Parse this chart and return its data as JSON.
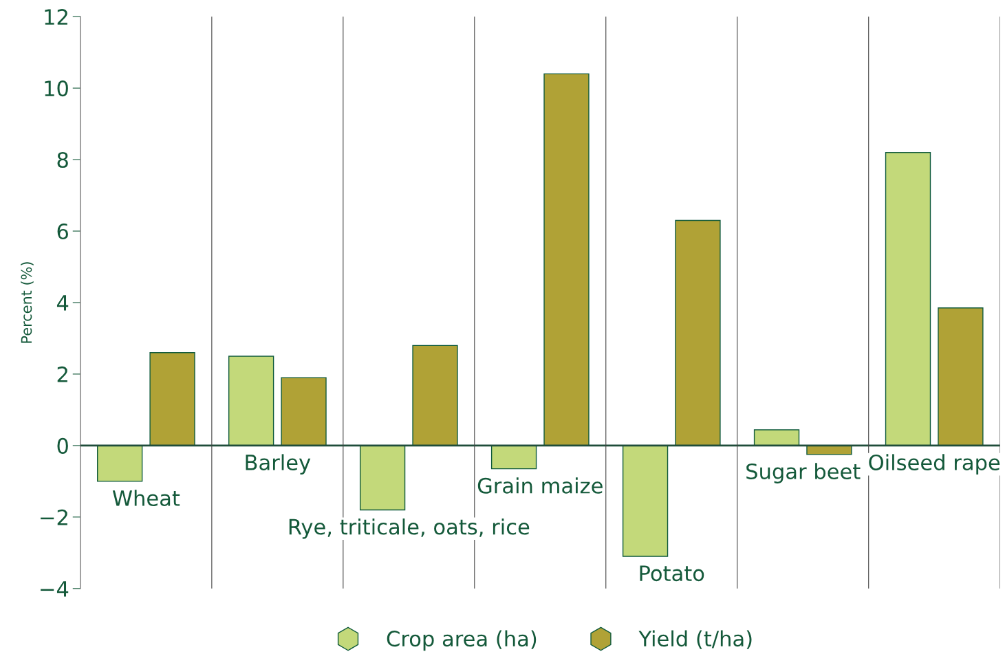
{
  "chart_data": {
    "type": "bar",
    "ylabel": "Percent (%)",
    "categories": [
      "Wheat",
      "Barley",
      "Rye, triticale, oats, rice",
      "Grain maize",
      "Potato",
      "Sugar beet",
      "Oilseed rape"
    ],
    "series": [
      {
        "name": "Crop area (ha)",
        "color": "#c3d97a",
        "values": [
          -1.0,
          2.5,
          -1.8,
          -0.65,
          -3.1,
          0.44,
          8.2
        ]
      },
      {
        "name": "Yield (t/ha)",
        "color": "#b0a236",
        "values": [
          2.6,
          1.9,
          2.8,
          10.4,
          6.3,
          -0.25,
          3.85
        ]
      }
    ],
    "ylim": [
      -4,
      12
    ],
    "yticks": [
      {
        "value": -4,
        "label": "−4"
      },
      {
        "value": -2,
        "label": "−2"
      },
      0,
      2,
      4,
      6,
      8,
      10,
      12
    ],
    "legend": "bottom",
    "grid": false
  }
}
